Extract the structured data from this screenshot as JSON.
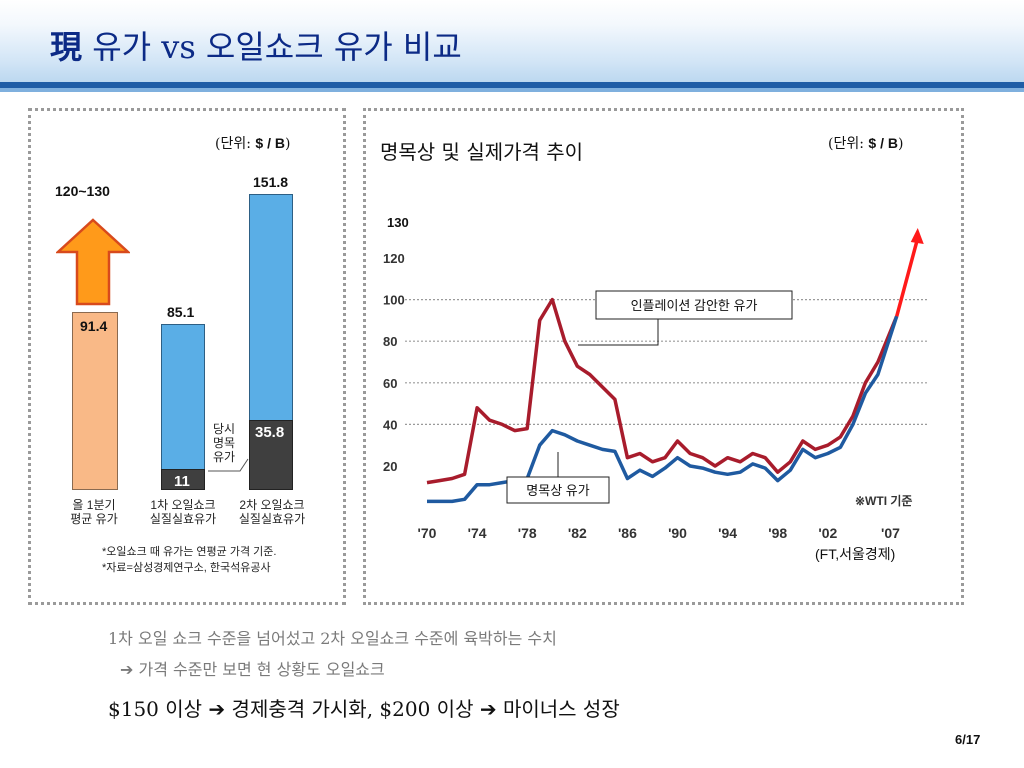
{
  "header": {
    "title_hanja": "現",
    "title_rest": " 유가 vs 오일쇼크 유가 비교"
  },
  "left_chart": {
    "unit_prefix": "(단위: ",
    "unit_value": "$ / B",
    "unit_suffix": ")",
    "range_label": "120~130",
    "side_label": [
      "당시",
      "명목",
      "유가"
    ],
    "notes": [
      "*오일쇼크 때 유가는 연평균 가격 기준.",
      "*자료=삼성경제연구소, 한국석유공사"
    ]
  },
  "right_chart": {
    "title": "명목상 및 실제가격 추이",
    "unit_prefix": "(단위: ",
    "unit_value": "$ / B",
    "unit_suffix": ")",
    "source": "(FT,서울경제)",
    "wti_note": "※WTI 기준"
  },
  "chart_data": [
    {
      "type": "bar",
      "categories": [
        "올 1분기 평균 유가",
        "1차 오일쇼크 실질실효유가",
        "2차 오일쇼크 실질실효유가"
      ],
      "category_lines": [
        [
          "올 1분기",
          "평균 유가"
        ],
        [
          "1차 오일쇼크",
          "실질실효유가"
        ],
        [
          "2차 오일쇼크",
          "실질실효유가"
        ]
      ],
      "series": [
        {
          "name": "당시 명목 유가",
          "values": [
            null,
            11,
            35.8
          ],
          "color": "#3f3f3f"
        },
        {
          "values": [
            91.4,
            85.1,
            151.8
          ],
          "color": "#5aaee6"
        }
      ],
      "arrow_label": "120~130",
      "ylim": [
        0,
        160
      ]
    },
    {
      "type": "line",
      "title": "명목상 및 실제가격 추이",
      "x_ticks": [
        "'70",
        "'74",
        "'78",
        "'82",
        "'86",
        "'90",
        "'94",
        "'98",
        "'02",
        "'07"
      ],
      "x_tick_values": [
        1970,
        1974,
        1978,
        1982,
        1986,
        1990,
        1994,
        1998,
        2002,
        2007
      ],
      "y_ticks": [
        20,
        40,
        60,
        80,
        100,
        120
      ],
      "ylim": [
        0,
        130
      ],
      "xlim": [
        1970,
        2008
      ],
      "target_label": "130",
      "series": [
        {
          "name": "인플레이션 감안한 유가",
          "color": "#a81c2c",
          "x": [
            1970,
            1971,
            1972,
            1973,
            1974,
            1975,
            1976,
            1977,
            1978,
            1979,
            1980,
            1981,
            1982,
            1983,
            1984,
            1985,
            1986,
            1987,
            1988,
            1989,
            1990,
            1991,
            1992,
            1993,
            1994,
            1995,
            1996,
            1997,
            1998,
            1999,
            2000,
            2001,
            2002,
            2003,
            2004,
            2005,
            2006,
            2007.5
          ],
          "values": [
            12,
            13,
            14,
            16,
            48,
            42,
            40,
            37,
            38,
            90,
            100,
            80,
            68,
            64,
            58,
            52,
            24,
            26,
            22,
            24,
            32,
            26,
            24,
            20,
            24,
            22,
            26,
            24,
            17,
            22,
            32,
            28,
            30,
            34,
            44,
            60,
            70,
            92
          ]
        },
        {
          "name": "명목상 유가",
          "color": "#1f5aa0",
          "x": [
            1970,
            1971,
            1972,
            1973,
            1974,
            1975,
            1976,
            1977,
            1978,
            1979,
            1980,
            1981,
            1982,
            1983,
            1984,
            1985,
            1986,
            1987,
            1988,
            1989,
            1990,
            1991,
            1992,
            1993,
            1994,
            1995,
            1996,
            1997,
            1998,
            1999,
            2000,
            2001,
            2002,
            2003,
            2004,
            2005,
            2006,
            2007.5
          ],
          "values": [
            3,
            3,
            3,
            4,
            11,
            11,
            12,
            13,
            14,
            30,
            37,
            35,
            32,
            30,
            28,
            27,
            14,
            18,
            15,
            19,
            24,
            20,
            19,
            17,
            16,
            17,
            21,
            19,
            13,
            18,
            28,
            24,
            26,
            29,
            40,
            55,
            64,
            92
          ]
        }
      ],
      "annotations": [
        {
          "text": "인플레이션 감안한 유가",
          "target": "인플레이션 감안한 유가"
        },
        {
          "text": "명목상 유가",
          "target": "명목상 유가"
        }
      ]
    }
  ],
  "bottom": {
    "line1": "1차 오일 쇼크 수준을 넘어섰고 2차 오일쇼크 수준에 육박하는 수치",
    "line2": "가격 수준만 보면 현 상황도 오일쇼크",
    "line3_part1": "$150 이상",
    "line3_part2": "경제충격 가시화,  $200 이상",
    "line3_part3": "마이너스 성장"
  },
  "page": {
    "number": "6/17"
  }
}
